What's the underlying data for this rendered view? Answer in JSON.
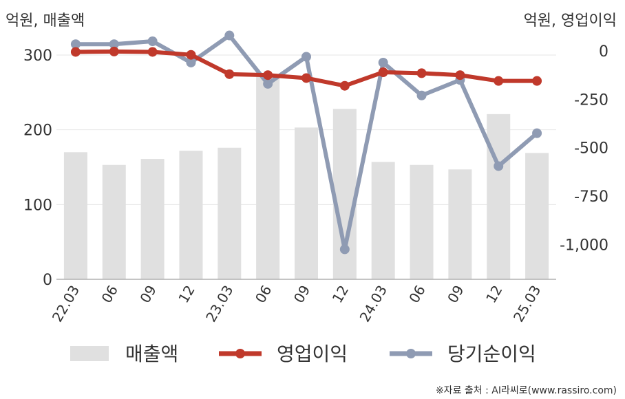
{
  "chart_data": {
    "type": "bar",
    "left_axis_unit": "억원, 매출액",
    "right_axis_unit": "억원, 영업이익",
    "categories": [
      "22.03",
      "06",
      "09",
      "12",
      "23.03",
      "06",
      "09",
      "12",
      "24.03",
      "06",
      "09",
      "12",
      "25.03"
    ],
    "left_axis": {
      "ticks": [
        "0",
        "100",
        "200",
        "300"
      ],
      "ylim": [
        0,
        300
      ]
    },
    "right_axis": {
      "ticks": [
        "0",
        "-250",
        "-500",
        "-750",
        "-1,000"
      ],
      "ylim": [
        -1180,
        50
      ]
    },
    "series": [
      {
        "name": "매출액",
        "type": "bar",
        "axis": "left",
        "color": "#e0e0e0",
        "values": [
          170,
          153,
          161,
          172,
          176,
          272,
          203,
          228,
          157,
          153,
          147,
          221,
          169
        ]
      },
      {
        "name": "영업이익",
        "type": "line",
        "axis": "right",
        "color": "#c0392b",
        "values": [
          -5,
          -3,
          -5,
          -20,
          -120,
          -125,
          -140,
          -180,
          -110,
          -115,
          -125,
          -155,
          -155
        ]
      },
      {
        "name": "당기순이익",
        "type": "line",
        "axis": "right",
        "color": "#8f9bb3",
        "values": [
          35,
          35,
          50,
          -60,
          80,
          -170,
          -30,
          -1025,
          -60,
          -230,
          -150,
          -595,
          -425
        ]
      }
    ],
    "grid": true,
    "legend_position": "bottom"
  },
  "source_note": "※자료 출처 : AI라씨로(www.rassiro.com)"
}
